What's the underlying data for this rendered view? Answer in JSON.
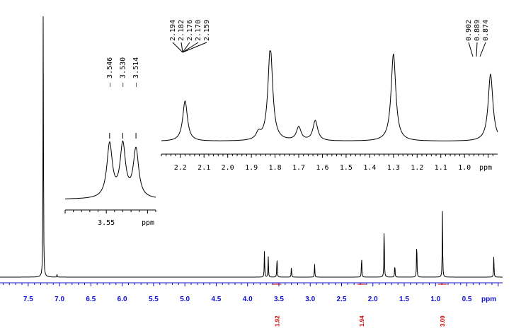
{
  "chart_data": {
    "type": "line",
    "title": "",
    "main": {
      "xlabel": "ppm",
      "xlim": [
        7.95,
        -0.07
      ],
      "tick_labels": [
        "7.5",
        "7.0",
        "6.5",
        "6.0",
        "5.5",
        "5.0",
        "4.5",
        "4.0",
        "3.5",
        "3.0",
        "2.5",
        "2.0",
        "1.5",
        "1.0",
        "0.5"
      ],
      "tick_values": [
        7.5,
        7.0,
        6.5,
        6.0,
        5.5,
        5.0,
        4.5,
        4.0,
        3.5,
        3.0,
        2.5,
        2.0,
        1.5,
        1.0,
        0.5
      ],
      "peaks": [
        {
          "ppm": 7.26,
          "height": 1.0
        },
        {
          "ppm": 7.04,
          "height": 0.01
        },
        {
          "ppm": 3.73,
          "height": 0.1
        },
        {
          "ppm": 3.67,
          "height": 0.08
        },
        {
          "ppm": 3.53,
          "height": 0.08
        },
        {
          "ppm": 3.3,
          "height": 0.04
        },
        {
          "ppm": 2.93,
          "height": 0.05
        },
        {
          "ppm": 2.18,
          "height": 0.08
        },
        {
          "ppm": 1.82,
          "height": 0.2
        },
        {
          "ppm": 1.65,
          "height": 0.05
        },
        {
          "ppm": 1.3,
          "height": 0.14
        },
        {
          "ppm": 0.89,
          "height": 0.24
        },
        {
          "ppm": 0.07,
          "height": 0.08
        }
      ],
      "integrals": [
        {
          "label": "1.92",
          "ppm": 3.53
        },
        {
          "label": "1.94",
          "ppm": 2.18
        },
        {
          "label": "3.00",
          "ppm": 0.89
        }
      ]
    },
    "inset_left": {
      "xlabel": "ppm",
      "xlim": [
        3.6,
        3.49
      ],
      "tick_labels": [
        "3.55"
      ],
      "tick_values": [
        3.55
      ],
      "peak_labels": [
        "3.546",
        "3.530",
        "3.514"
      ],
      "peaks": [
        {
          "ppm": 3.546,
          "height": 0.8
        },
        {
          "ppm": 3.53,
          "height": 0.78
        },
        {
          "ppm": 3.514,
          "height": 0.72
        }
      ]
    },
    "inset_right": {
      "xlabel": "ppm",
      "xlim": [
        2.28,
        0.86
      ],
      "tick_labels": [
        "2.2",
        "2.1",
        "2.0",
        "1.9",
        "1.8",
        "1.7",
        "1.6",
        "1.5",
        "1.4",
        "1.3",
        "1.2",
        "1.1",
        "1.0"
      ],
      "tick_values": [
        2.2,
        2.1,
        2.0,
        1.9,
        1.8,
        1.7,
        1.6,
        1.5,
        1.4,
        1.3,
        1.2,
        1.1,
        1.0
      ],
      "peak_labels_left": [
        "2.194",
        "2.182",
        "2.176",
        "2.170",
        "2.159"
      ],
      "peak_labels_right": [
        "0.902",
        "0.889",
        "0.874"
      ],
      "peaks": [
        {
          "ppm": 2.18,
          "height": 0.6
        },
        {
          "ppm": 1.87,
          "height": 0.1
        },
        {
          "ppm": 1.82,
          "height": 1.4
        },
        {
          "ppm": 1.7,
          "height": 0.2
        },
        {
          "ppm": 1.63,
          "height": 0.3
        },
        {
          "ppm": 1.3,
          "height": 1.3
        },
        {
          "ppm": 0.89,
          "height": 1.0
        }
      ]
    }
  }
}
